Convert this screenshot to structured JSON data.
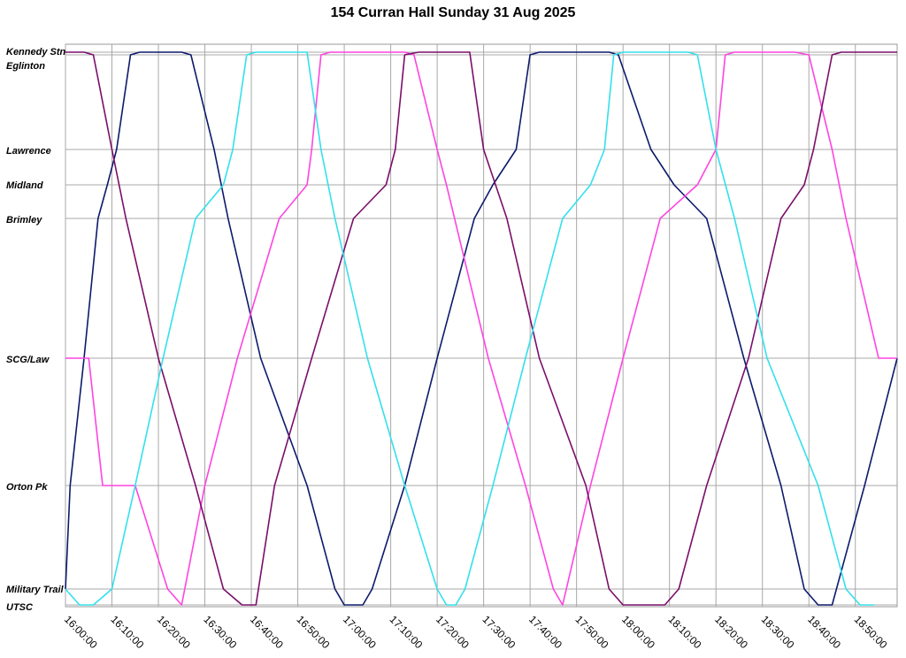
{
  "chart_data": {
    "type": "line",
    "title": "154 Curran Hall Sunday 31 Aug 2025",
    "xlabel": "",
    "ylabel": "",
    "x_range": [
      "16:00:00",
      "18:59:00"
    ],
    "x_ticks": [
      "16:00:00",
      "16:10:00",
      "16:20:00",
      "16:30:00",
      "16:40:00",
      "16:50:00",
      "17:00:00",
      "17:10:00",
      "17:20:00",
      "17:30:00",
      "17:40:00",
      "17:50:00",
      "18:00:00",
      "18:10:00",
      "18:20:00",
      "18:30:00",
      "18:40:00",
      "18:50:00"
    ],
    "stops": [
      "Kennedy Stn",
      "Eglinton",
      "Lawrence",
      "Midland",
      "Brimley",
      "SCG/Law",
      "Orton Pk",
      "Military Trail",
      "UTSC"
    ],
    "grid": true,
    "legend": "none",
    "series": [
      {
        "color": "#0d1a6b",
        "points": [
          [
            "16:00:00",
            "Military Trail"
          ],
          [
            "16:01:00",
            "Orton Pk"
          ],
          [
            "16:04:00",
            "SCG/Law"
          ],
          [
            "16:07:00",
            "Brimley"
          ],
          [
            "16:09:00",
            "Midland"
          ],
          [
            "16:11:00",
            "Lawrence"
          ],
          [
            "16:14:00",
            "Eglinton"
          ],
          [
            "16:16:00",
            "Kennedy Stn"
          ],
          [
            "16:25:00",
            "Kennedy Stn"
          ],
          [
            "16:27:00",
            "Eglinton"
          ],
          [
            "16:32:00",
            "Lawrence"
          ],
          [
            "16:35:00",
            "Brimley"
          ],
          [
            "16:42:00",
            "SCG/Law"
          ],
          [
            "16:52:00",
            "Orton Pk"
          ],
          [
            "16:58:00",
            "Military Trail"
          ],
          [
            "17:00:00",
            "UTSC"
          ],
          [
            "17:04:00",
            "UTSC"
          ],
          [
            "17:06:00",
            "Military Trail"
          ],
          [
            "17:13:00",
            "Orton Pk"
          ],
          [
            "17:20:00",
            "SCG/Law"
          ],
          [
            "17:28:00",
            "Brimley"
          ],
          [
            "17:32:00",
            "Midland"
          ],
          [
            "17:37:00",
            "Lawrence"
          ],
          [
            "17:40:00",
            "Eglinton"
          ],
          [
            "17:42:00",
            "Kennedy Stn"
          ],
          [
            "17:57:00",
            "Kennedy Stn"
          ],
          [
            "17:59:00",
            "Eglinton"
          ],
          [
            "18:06:00",
            "Lawrence"
          ],
          [
            "18:11:00",
            "Midland"
          ],
          [
            "18:18:00",
            "Brimley"
          ],
          [
            "18:26:00",
            "SCG/Law"
          ],
          [
            "18:34:00",
            "Orton Pk"
          ],
          [
            "18:39:00",
            "Military Trail"
          ],
          [
            "18:42:00",
            "UTSC"
          ],
          [
            "18:45:00",
            "UTSC"
          ],
          [
            "18:52:00",
            "Orton Pk"
          ],
          [
            "18:59:00",
            "SCG/Law"
          ]
        ]
      },
      {
        "color": "#ff44e0",
        "points": [
          [
            "16:00:00",
            "SCG/Law"
          ],
          [
            "16:05:00",
            "SCG/Law"
          ],
          [
            "16:08:00",
            "Orton Pk"
          ],
          [
            "16:15:00",
            "Orton Pk"
          ],
          [
            "16:22:00",
            "Military Trail"
          ],
          [
            "16:25:00",
            "UTSC"
          ],
          [
            "16:30:00",
            "Orton Pk"
          ],
          [
            "16:37:00",
            "SCG/Law"
          ],
          [
            "16:46:00",
            "Brimley"
          ],
          [
            "16:52:00",
            "Midland"
          ],
          [
            "16:53:00",
            "Lawrence"
          ],
          [
            "16:55:00",
            "Eglinton"
          ],
          [
            "16:57:00",
            "Kennedy Stn"
          ],
          [
            "17:13:00",
            "Kennedy Stn"
          ],
          [
            "17:15:00",
            "Eglinton"
          ],
          [
            "17:20:00",
            "Lawrence"
          ],
          [
            "17:22:00",
            "Midland"
          ],
          [
            "17:31:00",
            "SCG/Law"
          ],
          [
            "17:39:00",
            "Orton Pk"
          ],
          [
            "17:45:00",
            "Military Trail"
          ],
          [
            "17:47:00",
            "UTSC"
          ],
          [
            "17:53:00",
            "Orton Pk"
          ],
          [
            "18:00:00",
            "SCG/Law"
          ],
          [
            "18:08:00",
            "Brimley"
          ],
          [
            "18:16:00",
            "Midland"
          ],
          [
            "18:20:00",
            "Lawrence"
          ],
          [
            "18:22:00",
            "Eglinton"
          ],
          [
            "18:24:00",
            "Kennedy Stn"
          ],
          [
            "18:37:00",
            "Kennedy Stn"
          ],
          [
            "18:40:00",
            "Eglinton"
          ],
          [
            "18:45:00",
            "Lawrence"
          ],
          [
            "18:48:00",
            "Brimley"
          ],
          [
            "18:55:00",
            "SCG/Law"
          ],
          [
            "18:59:00",
            "SCG/Law"
          ]
        ]
      },
      {
        "color": "#7a0e6a",
        "points": [
          [
            "16:00:00",
            "Kennedy Stn"
          ],
          [
            "16:04:00",
            "Kennedy Stn"
          ],
          [
            "16:06:00",
            "Eglinton"
          ],
          [
            "16:10:00",
            "Lawrence"
          ],
          [
            "16:13:00",
            "Brimley"
          ],
          [
            "16:20:00",
            "SCG/Law"
          ],
          [
            "16:28:00",
            "Orton Pk"
          ],
          [
            "16:34:00",
            "Military Trail"
          ],
          [
            "16:38:00",
            "UTSC"
          ],
          [
            "16:41:00",
            "UTSC"
          ],
          [
            "16:45:00",
            "Orton Pk"
          ],
          [
            "16:53:00",
            "SCG/Law"
          ],
          [
            "17:02:00",
            "Brimley"
          ],
          [
            "17:09:00",
            "Midland"
          ],
          [
            "17:11:00",
            "Lawrence"
          ],
          [
            "17:13:00",
            "Eglinton"
          ],
          [
            "17:16:00",
            "Kennedy Stn"
          ],
          [
            "17:27:00",
            "Kennedy Stn"
          ],
          [
            "17:30:00",
            "Lawrence"
          ],
          [
            "17:35:00",
            "Brimley"
          ],
          [
            "17:42:00",
            "SCG/Law"
          ],
          [
            "17:52:00",
            "Orton Pk"
          ],
          [
            "17:57:00",
            "Military Trail"
          ],
          [
            "18:00:00",
            "UTSC"
          ],
          [
            "18:09:00",
            "UTSC"
          ],
          [
            "18:12:00",
            "Military Trail"
          ],
          [
            "18:18:00",
            "Orton Pk"
          ],
          [
            "18:27:00",
            "SCG/Law"
          ],
          [
            "18:34:00",
            "Brimley"
          ],
          [
            "18:39:00",
            "Midland"
          ],
          [
            "18:41:00",
            "Lawrence"
          ],
          [
            "18:45:00",
            "Eglinton"
          ],
          [
            "18:47:00",
            "Kennedy Stn"
          ],
          [
            "18:59:00",
            "Kennedy Stn"
          ]
        ]
      },
      {
        "color": "#33e0ec",
        "points": [
          [
            "16:00:00",
            "Military Trail"
          ],
          [
            "16:03:00",
            "UTSC"
          ],
          [
            "16:06:00",
            "UTSC"
          ],
          [
            "16:10:00",
            "Military Trail"
          ],
          [
            "16:15:00",
            "Orton Pk"
          ],
          [
            "16:21:00",
            "SCG/Law"
          ],
          [
            "16:28:00",
            "Brimley"
          ],
          [
            "16:34:00",
            "Midland"
          ],
          [
            "16:36:00",
            "Lawrence"
          ],
          [
            "16:39:00",
            "Eglinton"
          ],
          [
            "16:41:00",
            "Kennedy Stn"
          ],
          [
            "16:52:00",
            "Kennedy Stn"
          ],
          [
            "16:55:00",
            "Lawrence"
          ],
          [
            "16:58:00",
            "Brimley"
          ],
          [
            "17:05:00",
            "SCG/Law"
          ],
          [
            "17:13:00",
            "Orton Pk"
          ],
          [
            "17:20:00",
            "Military Trail"
          ],
          [
            "17:22:00",
            "UTSC"
          ],
          [
            "17:24:00",
            "UTSC"
          ],
          [
            "17:26:00",
            "Military Trail"
          ],
          [
            "17:32:00",
            "Orton Pk"
          ],
          [
            "17:39:00",
            "SCG/Law"
          ],
          [
            "17:47:00",
            "Brimley"
          ],
          [
            "17:53:00",
            "Midland"
          ],
          [
            "17:56:00",
            "Lawrence"
          ],
          [
            "17:58:00",
            "Eglinton"
          ],
          [
            "18:00:00",
            "Kennedy Stn"
          ],
          [
            "18:14:00",
            "Kennedy Stn"
          ],
          [
            "18:16:00",
            "Eglinton"
          ],
          [
            "18:20:00",
            "Lawrence"
          ],
          [
            "18:24:00",
            "Brimley"
          ],
          [
            "18:31:00",
            "SCG/Law"
          ],
          [
            "18:42:00",
            "Orton Pk"
          ],
          [
            "18:48:00",
            "Military Trail"
          ],
          [
            "18:51:00",
            "UTSC"
          ],
          [
            "18:54:00",
            "UTSC"
          ]
        ]
      }
    ]
  }
}
